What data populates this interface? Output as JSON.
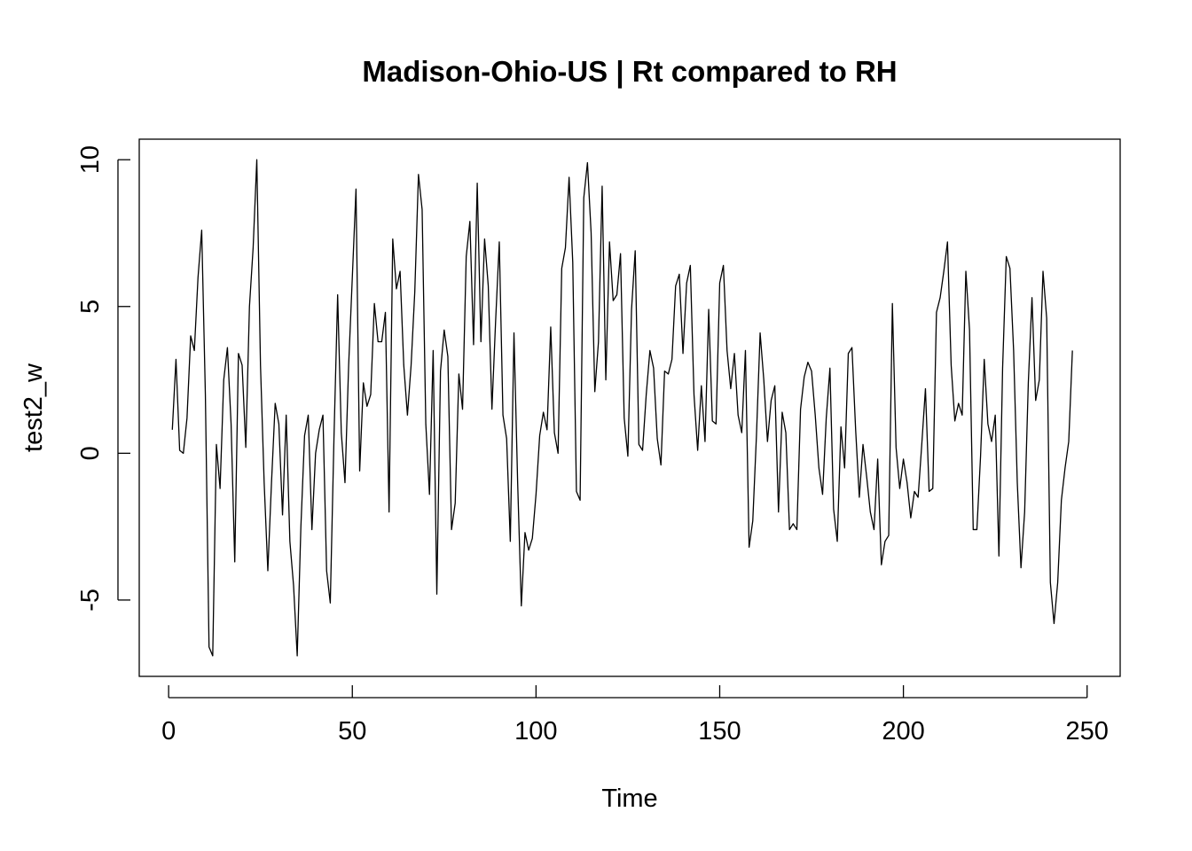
{
  "chart_data": {
    "type": "line",
    "title": "Madison-Ohio-US | Rt compared to RH",
    "xlabel": "Time",
    "ylabel": "test2_w",
    "xlim": [
      -8,
      259
    ],
    "ylim": [
      -7.6,
      10.7
    ],
    "x_ticks": [
      0,
      50,
      100,
      150,
      200,
      250
    ],
    "x_tick_labels": [
      "0",
      "50",
      "100",
      "150",
      "200",
      "250"
    ],
    "y_ticks": [
      -5,
      0,
      5,
      10
    ],
    "y_tick_labels": [
      "-5",
      "0",
      "5",
      "10"
    ],
    "grid": false,
    "legend": "none",
    "series": [
      {
        "x_start": 1,
        "x_step": 1,
        "values": [
          0.8,
          3.2,
          0.1,
          0.0,
          1.2,
          4.0,
          3.5,
          6.0,
          7.6,
          2.0,
          -6.6,
          -6.9,
          0.3,
          -1.2,
          2.5,
          3.6,
          1.0,
          -3.7,
          3.4,
          3.0,
          0.2,
          5.0,
          7.0,
          10.0,
          3.0,
          -1.0,
          -4.0,
          -1.0,
          1.7,
          1.0,
          -2.1,
          1.3,
          -3.0,
          -4.5,
          -6.9,
          -2.5,
          0.6,
          1.3,
          -2.6,
          0.0,
          0.8,
          1.3,
          -4.0,
          -5.1,
          0.5,
          5.4,
          0.7,
          -1.0,
          3.0,
          6.0,
          9.0,
          -0.6,
          2.4,
          1.6,
          2.0,
          5.1,
          3.8,
          3.8,
          4.8,
          -2.0,
          7.3,
          5.6,
          6.2,
          3.0,
          1.3,
          3.0,
          5.5,
          9.5,
          8.3,
          1.0,
          -1.4,
          3.5,
          -4.8,
          2.8,
          4.2,
          3.3,
          -2.6,
          -1.7,
          2.7,
          1.5,
          6.7,
          7.9,
          3.7,
          9.2,
          3.8,
          7.3,
          5.7,
          1.5,
          4.5,
          7.2,
          1.3,
          0.5,
          -3.0,
          4.1,
          -1.0,
          -5.2,
          -2.7,
          -3.3,
          -2.9,
          -1.4,
          0.6,
          1.4,
          0.8,
          4.3,
          0.7,
          0.0,
          6.3,
          7.0,
          9.4,
          6.5,
          -1.3,
          -1.6,
          8.7,
          9.9,
          7.5,
          2.1,
          3.8,
          9.1,
          2.5,
          7.2,
          5.2,
          5.4,
          6.8,
          1.2,
          -0.1,
          4.9,
          6.9,
          0.3,
          0.1,
          2.0,
          3.5,
          2.9,
          0.5,
          -0.4,
          2.8,
          2.7,
          3.2,
          5.7,
          6.1,
          3.4,
          5.8,
          6.4,
          2.0,
          0.1,
          2.3,
          0.4,
          4.9,
          1.1,
          1.0,
          5.8,
          6.4,
          3.5,
          2.2,
          3.4,
          1.3,
          0.7,
          3.5,
          -3.2,
          -2.3,
          0.6,
          4.1,
          2.5,
          0.4,
          1.8,
          2.3,
          -2.0,
          1.4,
          0.7,
          -2.6,
          -2.4,
          -2.6,
          1.5,
          2.6,
          3.1,
          2.8,
          1.3,
          -0.5,
          -1.4,
          1.2,
          2.9,
          -1.9,
          -3.0,
          0.9,
          -0.5,
          3.4,
          3.6,
          0.8,
          -1.5,
          0.3,
          -0.8,
          -2.0,
          -2.6,
          -0.2,
          -3.8,
          -3.0,
          -2.8,
          5.1,
          0.2,
          -1.2,
          -0.2,
          -1.0,
          -2.2,
          -1.3,
          -1.5,
          0.3,
          2.2,
          -1.3,
          -1.2,
          4.8,
          5.3,
          6.2,
          7.2,
          3.0,
          1.1,
          1.7,
          1.3,
          6.2,
          4.2,
          -2.6,
          -2.6,
          -0.1,
          3.2,
          1.0,
          0.4,
          1.3,
          -3.5,
          2.9,
          6.7,
          6.3,
          3.5,
          -1.0,
          -3.9,
          -2.0,
          2.4,
          5.3,
          1.8,
          2.5,
          6.2,
          4.6,
          -4.4,
          -5.8,
          -4.4,
          -1.6,
          -0.5,
          0.4,
          3.5
        ]
      }
    ]
  }
}
